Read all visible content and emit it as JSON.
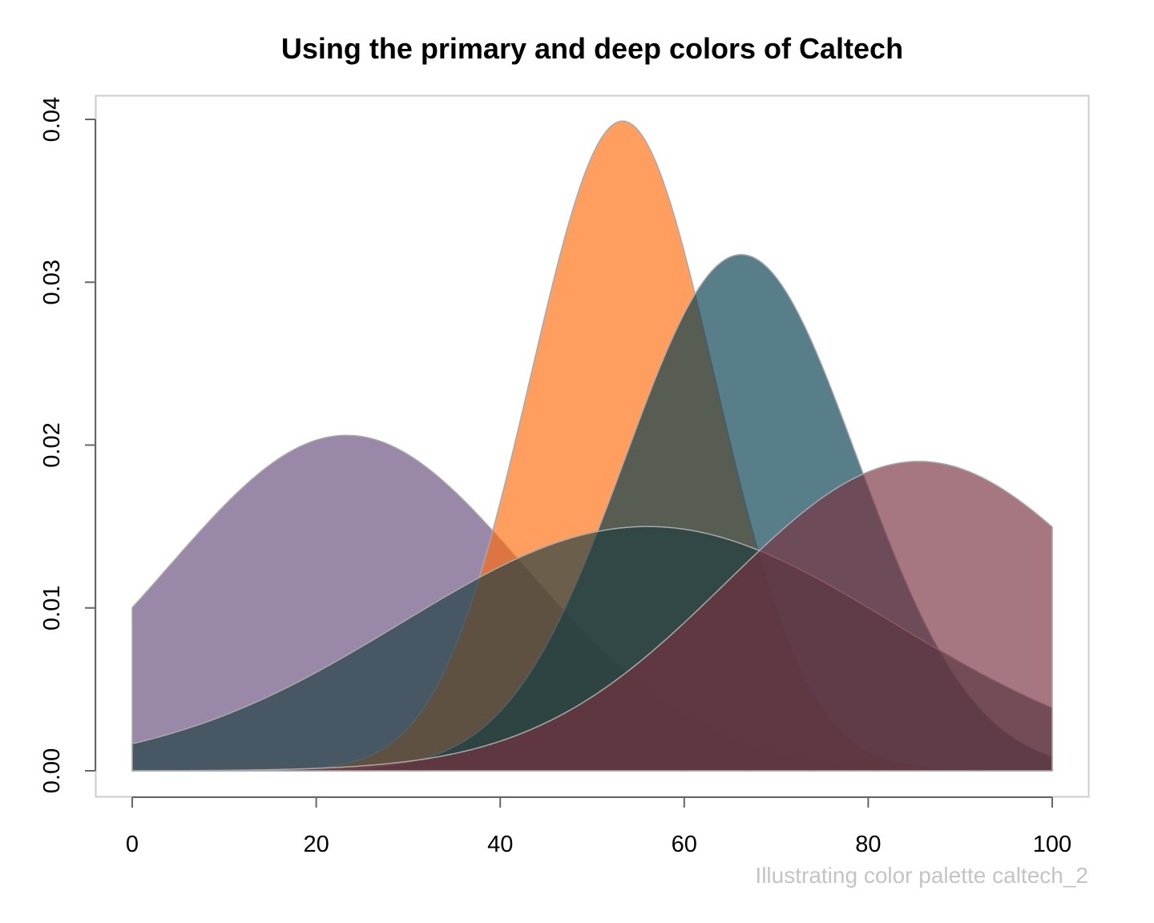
{
  "chart_data": {
    "type": "area",
    "title": "Using the primary and deep colors of Caltech",
    "caption": "Illustrating color palette caltech_2",
    "xlabel": "",
    "ylabel": "",
    "xlim": [
      0,
      100
    ],
    "ylim": [
      0,
      0.04
    ],
    "x_ticks": [
      "0",
      "20",
      "40",
      "60",
      "80",
      "100"
    ],
    "y_ticks": [
      "0.00",
      "0.01",
      "0.02",
      "0.03",
      "0.04"
    ],
    "grid": false,
    "legend": "none",
    "series": [
      {
        "distribution": "normal",
        "mean": 23.3,
        "sd": 19.4,
        "peak": 0.0206,
        "color": "#644A79"
      },
      {
        "distribution": "normal",
        "mean": 53.3,
        "sd": 10.0,
        "peak": 0.0399,
        "color": "#FF6C0C"
      },
      {
        "distribution": "normal",
        "mean": 66.2,
        "sd": 12.6,
        "peak": 0.0317,
        "color": "#003B4C"
      },
      {
        "distribution": "normal",
        "mean": 56.0,
        "sd": 26.7,
        "peak": 0.015,
        "color": "#1E3E41"
      },
      {
        "distribution": "normal",
        "mean": 85.5,
        "sd": 21.0,
        "peak": 0.019,
        "color": "#7A303F"
      }
    ],
    "x_range": [
      0,
      100
    ]
  }
}
